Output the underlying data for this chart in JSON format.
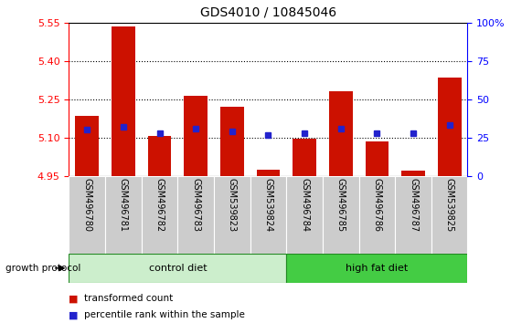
{
  "title": "GDS4010 / 10845046",
  "samples": [
    "GSM496780",
    "GSM496781",
    "GSM496782",
    "GSM496783",
    "GSM539823",
    "GSM539824",
    "GSM496784",
    "GSM496785",
    "GSM496786",
    "GSM496787",
    "GSM539825"
  ],
  "bar_values": [
    5.185,
    5.535,
    5.105,
    5.265,
    5.22,
    4.975,
    5.095,
    5.28,
    5.085,
    4.97,
    5.335
  ],
  "percentile_values": [
    30,
    32,
    28,
    31,
    29,
    27,
    28,
    31,
    28,
    28,
    33
  ],
  "n_control": 6,
  "control_label": "control diet",
  "hfd_label": "high fat diet",
  "growth_protocol_label": "growth protocol",
  "legend_red": "transformed count",
  "legend_blue": "percentile rank within the sample",
  "ymin": 4.95,
  "ymax": 5.55,
  "y_ticks": [
    4.95,
    5.1,
    5.25,
    5.4,
    5.55
  ],
  "y_right_ticks": [
    0,
    25,
    50,
    75,
    100
  ],
  "bar_color": "#cc1100",
  "blue_color": "#2222cc",
  "control_bg_light": "#cceecc",
  "control_bg_dark": "#44bb44",
  "hfd_bg": "#44cc44",
  "label_bg": "#cccccc"
}
